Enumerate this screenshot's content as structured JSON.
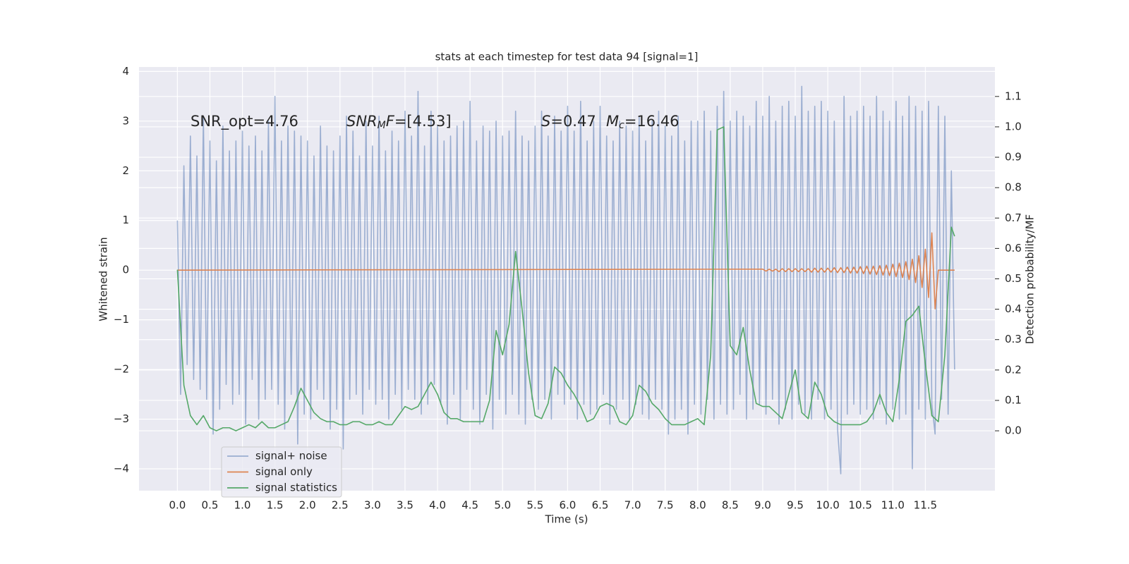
{
  "chart_data": {
    "type": "line",
    "title": "stats at each timestep for test data 94 [signal=1]",
    "xlabel": "Time (s)",
    "ylabel": "Whitened strain",
    "y2label": "Detection probability/MF",
    "annotations": [
      [
        {
          "text": "SNR_opt=4.76"
        }
      ],
      [
        {
          "text": "SNR",
          "italic": true
        },
        {
          "text": "M",
          "italic": true,
          "sub": true
        },
        {
          "text": "F",
          "italic": true
        },
        {
          "text": "=[4.53]"
        }
      ],
      [
        {
          "text": "S",
          "italic": true
        },
        {
          "text": "=0.47"
        }
      ],
      [
        {
          "text": "M",
          "italic": true
        },
        {
          "text": "c",
          "italic": true,
          "sub": true
        },
        {
          "text": "=16.46"
        }
      ]
    ],
    "xlim": [
      -0.59,
      12.57
    ],
    "ylim": [
      -4.44,
      4.09
    ],
    "y2lim": [
      -0.197,
      1.197
    ],
    "xticks": [
      {
        "value": 0,
        "label": "0.0"
      },
      0.5,
      {
        "value": 1,
        "label": "1.0"
      },
      1.5,
      {
        "value": 2,
        "label": "2.0"
      },
      2.5,
      {
        "value": 3,
        "label": "3.0"
      },
      3.5,
      {
        "value": 4,
        "label": "4.0"
      },
      4.5,
      {
        "value": 5,
        "label": "5.0"
      },
      5.5,
      {
        "value": 6,
        "label": "6.0"
      },
      6.5,
      {
        "value": 7,
        "label": "7.0"
      },
      7.5,
      {
        "value": 8,
        "label": "8.0"
      },
      8.5,
      {
        "value": 9,
        "label": "9.0"
      },
      9.5,
      {
        "value": 10,
        "label": "10.0"
      },
      10.5,
      {
        "value": 11,
        "label": "11.0"
      },
      11.5
    ],
    "yticks": [
      {
        "value": -4,
        "label": "−4"
      },
      {
        "value": -3,
        "label": "−3"
      },
      {
        "value": -2,
        "label": "−2"
      },
      {
        "value": -1,
        "label": "−1"
      },
      0,
      1,
      2,
      3,
      4
    ],
    "y2ticks": [
      {
        "value": 0,
        "label": "0.0"
      },
      0.1,
      0.2,
      0.3,
      0.4,
      0.5,
      0.6,
      0.7,
      0.8,
      0.9,
      {
        "value": 1,
        "label": "1.0"
      },
      1.1
    ],
    "grid": true,
    "legend": "lower left",
    "series": [
      {
        "name": "signal+ noise",
        "color": "#4c72b0",
        "alpha": 0.5,
        "x": [
          0.0,
          0.05,
          0.1,
          0.15,
          0.2,
          0.25,
          0.3,
          0.35,
          0.4,
          0.45,
          0.5,
          0.55,
          0.6,
          0.65,
          0.7,
          0.75,
          0.8,
          0.85,
          0.9,
          0.95,
          1.0,
          1.05,
          1.1,
          1.15,
          1.2,
          1.25,
          1.3,
          1.35,
          1.4,
          1.45,
          1.5,
          1.55,
          1.6,
          1.65,
          1.7,
          1.75,
          1.8,
          1.85,
          1.9,
          1.95,
          2.0,
          2.05,
          2.1,
          2.15,
          2.2,
          2.25,
          2.3,
          2.35,
          2.4,
          2.45,
          2.5,
          2.55,
          2.6,
          2.65,
          2.7,
          2.75,
          2.8,
          2.85,
          2.9,
          2.95,
          3.0,
          3.05,
          3.1,
          3.15,
          3.2,
          3.25,
          3.3,
          3.35,
          3.4,
          3.45,
          3.5,
          3.55,
          3.6,
          3.65,
          3.7,
          3.75,
          3.8,
          3.85,
          3.9,
          3.95,
          4.0,
          4.05,
          4.1,
          4.15,
          4.2,
          4.25,
          4.3,
          4.35,
          4.4,
          4.45,
          4.5,
          4.55,
          4.6,
          4.65,
          4.7,
          4.75,
          4.8,
          4.85,
          4.9,
          4.95,
          5.0,
          5.05,
          5.1,
          5.15,
          5.2,
          5.25,
          5.3,
          5.35,
          5.4,
          5.45,
          5.5,
          5.55,
          5.6,
          5.65,
          5.7,
          5.75,
          5.8,
          5.85,
          5.9,
          5.95,
          6.0,
          6.05,
          6.1,
          6.15,
          6.2,
          6.25,
          6.3,
          6.35,
          6.4,
          6.45,
          6.5,
          6.55,
          6.6,
          6.65,
          6.7,
          6.75,
          6.8,
          6.85,
          6.9,
          6.95,
          7.0,
          7.05,
          7.1,
          7.15,
          7.2,
          7.25,
          7.3,
          7.35,
          7.4,
          7.45,
          7.5,
          7.55,
          7.6,
          7.65,
          7.7,
          7.75,
          7.8,
          7.85,
          7.9,
          7.95,
          8.0,
          8.05,
          8.1,
          8.15,
          8.2,
          8.25,
          8.3,
          8.35,
          8.4,
          8.45,
          8.5,
          8.55,
          8.6,
          8.65,
          8.7,
          8.75,
          8.8,
          8.85,
          8.9,
          8.95,
          9.0,
          9.05,
          9.1,
          9.15,
          9.2,
          9.25,
          9.3,
          9.35,
          9.4,
          9.45,
          9.5,
          9.55,
          9.6,
          9.65,
          9.7,
          9.75,
          9.8,
          9.85,
          9.9,
          9.95,
          10.0,
          10.05,
          10.1,
          10.15,
          10.2,
          10.25,
          10.3,
          10.35,
          10.4,
          10.45,
          10.5,
          10.55,
          10.6,
          10.65,
          10.7,
          10.75,
          10.8,
          10.85,
          10.9,
          10.95,
          11.0,
          11.05,
          11.1,
          11.15,
          11.2,
          11.25,
          11.3,
          11.35,
          11.4,
          11.45,
          11.5,
          11.55,
          11.6,
          11.65,
          11.7,
          11.75,
          11.8,
          11.85,
          11.9,
          11.95
        ],
        "values": [
          1.0,
          -2.5,
          2.1,
          -1.9,
          2.7,
          -2.2,
          2.3,
          -2.4,
          3.1,
          -2.6,
          2.6,
          -3.3,
          2.2,
          -2.8,
          2.9,
          -2.3,
          2.4,
          -2.7,
          2.6,
          -2.5,
          2.8,
          -3.1,
          2.5,
          -2.2,
          2.7,
          -3.0,
          2.4,
          -2.6,
          3.0,
          -2.4,
          3.5,
          -2.7,
          2.6,
          -3.2,
          2.9,
          -2.5,
          2.8,
          -3.5,
          2.7,
          -2.9,
          2.6,
          -3.0,
          2.3,
          -2.4,
          2.9,
          -2.6,
          2.5,
          -3.2,
          2.4,
          -2.8,
          2.7,
          -3.6,
          3.1,
          -2.6,
          2.8,
          -2.5,
          2.3,
          -2.9,
          3.0,
          -2.4,
          2.5,
          -2.7,
          3.1,
          -2.6,
          2.4,
          -3.0,
          2.8,
          -2.5,
          2.6,
          -2.8,
          3.2,
          -2.4,
          2.7,
          -2.6,
          3.6,
          -2.9,
          2.5,
          -2.7,
          3.2,
          -2.3,
          2.9,
          -2.7,
          2.6,
          -3.1,
          2.7,
          -2.5,
          2.9,
          -3.0,
          3.0,
          -2.4,
          3.4,
          -2.8,
          2.6,
          -3.1,
          2.9,
          -2.5,
          2.8,
          -3.2,
          3.0,
          -2.6,
          2.7,
          -2.9,
          2.8,
          -2.5,
          3.2,
          -2.9,
          2.7,
          -3.1,
          2.6,
          -2.6,
          2.9,
          -2.8,
          3.2,
          -2.6,
          2.7,
          -3.0,
          3.1,
          -2.5,
          2.8,
          -2.7,
          3.3,
          -2.6,
          2.8,
          -3.0,
          3.4,
          -2.7,
          2.6,
          -2.9,
          3.0,
          -2.8,
          3.3,
          -2.5,
          2.7,
          -3.1,
          2.6,
          -2.8,
          3.0,
          -2.6,
          2.9,
          -3.0,
          2.8,
          -2.7,
          3.1,
          -2.9,
          2.6,
          -3.0,
          3.0,
          -2.6,
          3.2,
          -2.8,
          2.9,
          -3.3,
          2.7,
          -3.0,
          3.1,
          -2.8,
          2.6,
          -3.3,
          3.0,
          -2.7,
          3.0,
          -2.9,
          3.2,
          -2.6,
          2.8,
          -3.0,
          3.3,
          -2.7,
          3.6,
          -2.9,
          3.0,
          -2.8,
          3.2,
          -2.5,
          3.1,
          -3.0,
          2.9,
          -2.8,
          3.4,
          -2.7,
          3.1,
          -2.9,
          3.5,
          -2.6,
          3.0,
          -3.1,
          3.3,
          -2.8,
          3.4,
          -3.0,
          3.1,
          -2.7,
          3.7,
          -2.9,
          3.2,
          -3.0,
          3.3,
          -2.6,
          3.4,
          -3.0,
          3.2,
          -2.8,
          3.0,
          -3.2,
          -4.1,
          3.5,
          -2.9,
          3.1,
          -2.7,
          3.2,
          -2.9,
          3.3,
          -2.8,
          3.1,
          -3.0,
          3.5,
          -2.7,
          3.2,
          -3.1,
          3.0,
          -2.8,
          3.4,
          -3.0,
          3.1,
          -2.9,
          3.5,
          -4.0,
          3.3,
          -2.8,
          3.2,
          -3.0,
          3.4,
          -2.7,
          -3.3,
          3.3,
          -2.6,
          3.1,
          -2.9,
          2.0,
          -2.0
        ]
      },
      {
        "name": "signal only",
        "color": "#dd8452",
        "x": [
          0.0,
          9.0,
          9.05,
          9.1,
          9.15,
          9.2,
          9.25,
          9.3,
          9.35,
          9.4,
          9.45,
          9.5,
          9.55,
          9.6,
          9.65,
          9.7,
          9.75,
          9.8,
          9.85,
          9.9,
          9.95,
          10.0,
          10.05,
          10.1,
          10.15,
          10.2,
          10.25,
          10.3,
          10.35,
          10.4,
          10.45,
          10.5,
          10.55,
          10.6,
          10.65,
          10.7,
          10.75,
          10.8,
          10.85,
          10.9,
          10.95,
          11.0,
          11.05,
          11.1,
          11.15,
          11.2,
          11.25,
          11.3,
          11.35,
          11.4,
          11.45,
          11.5,
          11.55,
          11.6,
          11.65,
          11.7,
          11.95
        ],
        "values": [
          0,
          0.02,
          -0.02,
          0.02,
          -0.02,
          0.02,
          -0.03,
          0.03,
          -0.03,
          0.03,
          -0.03,
          0.03,
          -0.03,
          0.03,
          -0.03,
          0.03,
          -0.04,
          0.04,
          -0.04,
          0.04,
          -0.04,
          0.04,
          -0.04,
          0.05,
          -0.05,
          0.05,
          -0.05,
          0.06,
          -0.06,
          0.06,
          -0.06,
          0.07,
          -0.07,
          0.08,
          -0.08,
          0.08,
          -0.09,
          0.09,
          -0.1,
          0.1,
          -0.11,
          0.12,
          -0.13,
          0.14,
          -0.15,
          0.17,
          -0.19,
          0.22,
          -0.25,
          0.29,
          -0.35,
          0.42,
          -0.55,
          0.75,
          -0.78,
          0,
          0
        ]
      },
      {
        "name": "signal statistics",
        "color": "#55a868",
        "axis": "y2",
        "x": [
          0.0,
          0.1,
          0.2,
          0.3,
          0.4,
          0.5,
          0.6,
          0.7,
          0.8,
          0.9,
          1.0,
          1.1,
          1.2,
          1.3,
          1.4,
          1.5,
          1.6,
          1.7,
          1.8,
          1.9,
          2.0,
          2.1,
          2.2,
          2.3,
          2.4,
          2.5,
          2.6,
          2.7,
          2.8,
          2.9,
          3.0,
          3.1,
          3.2,
          3.3,
          3.4,
          3.5,
          3.6,
          3.7,
          3.8,
          3.9,
          4.0,
          4.1,
          4.2,
          4.3,
          4.4,
          4.5,
          4.6,
          4.7,
          4.8,
          4.9,
          5.0,
          5.1,
          5.2,
          5.3,
          5.4,
          5.5,
          5.6,
          5.7,
          5.8,
          5.9,
          6.0,
          6.1,
          6.2,
          6.3,
          6.4,
          6.5,
          6.6,
          6.7,
          6.8,
          6.9,
          7.0,
          7.1,
          7.2,
          7.3,
          7.4,
          7.5,
          7.6,
          7.7,
          7.8,
          7.9,
          8.0,
          8.1,
          8.2,
          8.3,
          8.4,
          8.5,
          8.6,
          8.7,
          8.8,
          8.9,
          9.0,
          9.1,
          9.2,
          9.3,
          9.4,
          9.5,
          9.6,
          9.7,
          9.8,
          9.9,
          10.0,
          10.1,
          10.2,
          10.3,
          10.4,
          10.5,
          10.6,
          10.7,
          10.8,
          10.9,
          11.0,
          11.1,
          11.2,
          11.3,
          11.4,
          11.5,
          11.6,
          11.7,
          11.8,
          11.9,
          11.95
        ],
        "values": [
          0.53,
          0.15,
          0.05,
          0.02,
          0.05,
          0.01,
          0.0,
          0.01,
          0.01,
          0.0,
          0.01,
          0.02,
          0.01,
          0.03,
          0.01,
          0.01,
          0.02,
          0.03,
          0.08,
          0.14,
          0.1,
          0.06,
          0.04,
          0.03,
          0.03,
          0.02,
          0.02,
          0.03,
          0.03,
          0.02,
          0.02,
          0.03,
          0.02,
          0.02,
          0.05,
          0.08,
          0.07,
          0.08,
          0.12,
          0.16,
          0.12,
          0.06,
          0.04,
          0.04,
          0.03,
          0.03,
          0.03,
          0.03,
          0.1,
          0.33,
          0.25,
          0.35,
          0.59,
          0.4,
          0.19,
          0.05,
          0.04,
          0.09,
          0.21,
          0.19,
          0.15,
          0.12,
          0.08,
          0.03,
          0.04,
          0.08,
          0.09,
          0.08,
          0.03,
          0.02,
          0.05,
          0.15,
          0.13,
          0.09,
          0.07,
          0.04,
          0.02,
          0.02,
          0.02,
          0.03,
          0.04,
          0.02,
          0.25,
          0.99,
          1.0,
          0.28,
          0.25,
          0.34,
          0.2,
          0.09,
          0.08,
          0.08,
          0.06,
          0.04,
          0.12,
          0.2,
          0.06,
          0.04,
          0.16,
          0.12,
          0.05,
          0.03,
          0.02,
          0.02,
          0.02,
          0.02,
          0.03,
          0.06,
          0.12,
          0.06,
          0.03,
          0.17,
          0.36,
          0.38,
          0.41,
          0.22,
          0.05,
          0.03,
          0.25,
          0.67,
          0.64
        ]
      }
    ]
  }
}
